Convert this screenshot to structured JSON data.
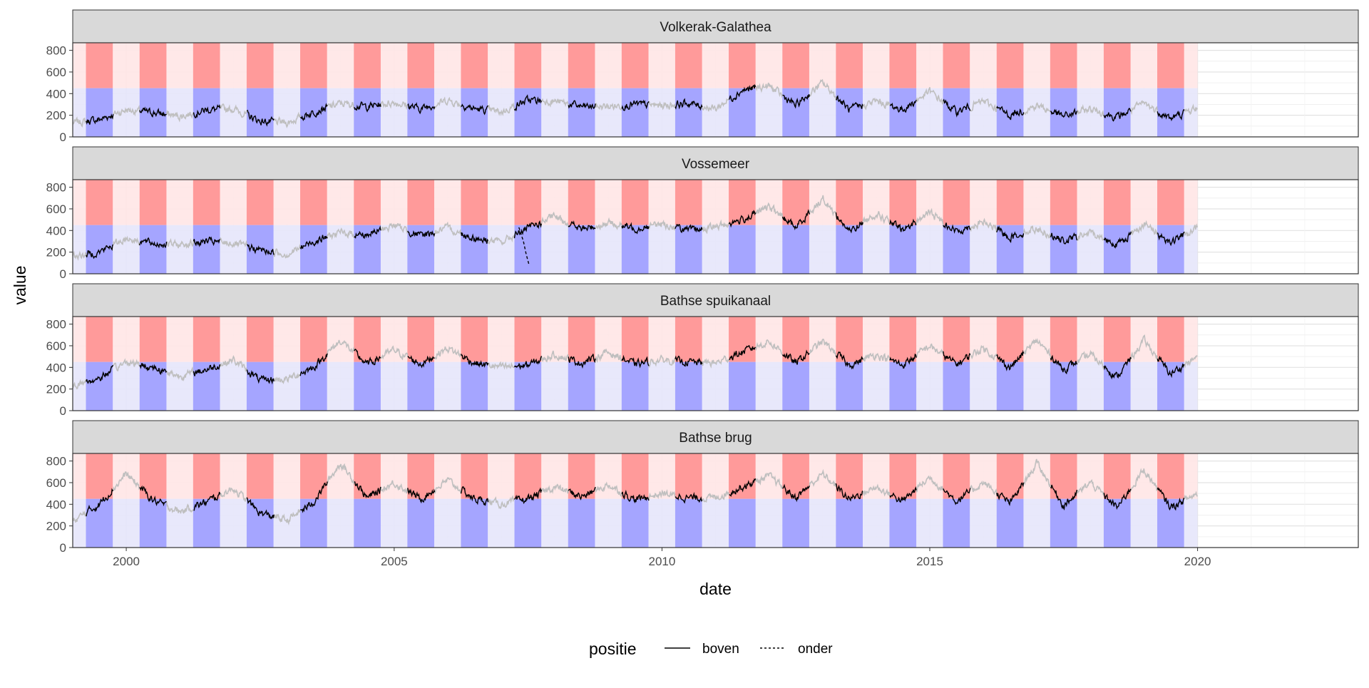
{
  "chart_data": {
    "type": "line",
    "xlabel": "date",
    "ylabel": "value",
    "x_range": [
      "1999-01-01",
      "2023-01-01"
    ],
    "ylim": [
      0,
      870
    ],
    "x_ticks": [
      {
        "label": "2000",
        "date": "2000-01-01"
      },
      {
        "label": "2005",
        "date": "2005-01-01"
      },
      {
        "label": "2010",
        "date": "2010-01-01"
      },
      {
        "label": "2015",
        "date": "2015-01-01"
      },
      {
        "label": "2020",
        "date": "2020-01-01"
      }
    ],
    "y_ticks": [
      0,
      200,
      400,
      600,
      800
    ],
    "threshold": 450,
    "season_start_month": 4,
    "season_end_month": 9,
    "season_years": [
      1999,
      2019
    ],
    "colors": {
      "red_band": "#ff9a9a",
      "red_light": "#ffe6e6",
      "blue_band": "#a5a5ff",
      "blue_light": "#e6e6fb",
      "active": "#000000",
      "inactive": "#bfbfbf",
      "strip": "#d9d9d9"
    },
    "grid": true,
    "legend": {
      "title": "positie",
      "position": "bottom",
      "items": [
        {
          "label": "boven",
          "style": "solid"
        },
        {
          "label": "onder",
          "style": "dashed"
        }
      ]
    },
    "panels": [
      {
        "name": "Volkerak-Galathea",
        "series": [
          {
            "x": "1999-01-01",
            "y": 130
          },
          {
            "x": "1999-07-01",
            "y": 160
          },
          {
            "x": "2000-01-01",
            "y": 250
          },
          {
            "x": "2000-07-01",
            "y": 225
          },
          {
            "x": "2001-01-01",
            "y": 190
          },
          {
            "x": "2001-07-01",
            "y": 250
          },
          {
            "x": "2002-01-01",
            "y": 260
          },
          {
            "x": "2002-07-01",
            "y": 145
          },
          {
            "x": "2003-01-01",
            "y": 130
          },
          {
            "x": "2003-07-01",
            "y": 230
          },
          {
            "x": "2004-01-01",
            "y": 310
          },
          {
            "x": "2004-07-01",
            "y": 280
          },
          {
            "x": "2005-01-01",
            "y": 320
          },
          {
            "x": "2005-07-01",
            "y": 260
          },
          {
            "x": "2006-01-01",
            "y": 340
          },
          {
            "x": "2006-07-01",
            "y": 260
          },
          {
            "x": "2007-01-01",
            "y": 230
          },
          {
            "x": "2007-07-01",
            "y": 340
          },
          {
            "x": "2008-01-01",
            "y": 330
          },
          {
            "x": "2008-07-01",
            "y": 280
          },
          {
            "x": "2009-01-01",
            "y": 280
          },
          {
            "x": "2009-07-01",
            "y": 300
          },
          {
            "x": "2010-01-01",
            "y": 290
          },
          {
            "x": "2010-07-01",
            "y": 310
          },
          {
            "x": "2011-01-01",
            "y": 260
          },
          {
            "x": "2011-07-01",
            "y": 430
          },
          {
            "x": "2012-01-01",
            "y": 470
          },
          {
            "x": "2012-07-01",
            "y": 290
          },
          {
            "x": "2013-01-01",
            "y": 500
          },
          {
            "x": "2013-07-01",
            "y": 250
          },
          {
            "x": "2014-01-01",
            "y": 330
          },
          {
            "x": "2014-07-01",
            "y": 250
          },
          {
            "x": "2015-01-01",
            "y": 420
          },
          {
            "x": "2015-07-01",
            "y": 230
          },
          {
            "x": "2016-01-01",
            "y": 330
          },
          {
            "x": "2016-07-01",
            "y": 200
          },
          {
            "x": "2017-01-01",
            "y": 290
          },
          {
            "x": "2017-07-01",
            "y": 190
          },
          {
            "x": "2018-01-01",
            "y": 260
          },
          {
            "x": "2018-07-01",
            "y": 180
          },
          {
            "x": "2019-01-01",
            "y": 310
          },
          {
            "x": "2019-07-01",
            "y": 170
          },
          {
            "x": "2020-01-01",
            "y": 270
          }
        ]
      },
      {
        "name": "Vossemeer",
        "series": [
          {
            "x": "1999-01-01",
            "y": 160
          },
          {
            "x": "1999-07-01",
            "y": 200
          },
          {
            "x": "2000-01-01",
            "y": 330
          },
          {
            "x": "2000-07-01",
            "y": 280
          },
          {
            "x": "2001-01-01",
            "y": 270
          },
          {
            "x": "2001-07-01",
            "y": 300
          },
          {
            "x": "2002-01-01",
            "y": 280
          },
          {
            "x": "2002-07-01",
            "y": 220
          },
          {
            "x": "2003-01-01",
            "y": 180
          },
          {
            "x": "2003-07-01",
            "y": 300
          },
          {
            "x": "2004-01-01",
            "y": 380
          },
          {
            "x": "2004-07-01",
            "y": 360
          },
          {
            "x": "2005-01-01",
            "y": 450
          },
          {
            "x": "2005-07-01",
            "y": 350
          },
          {
            "x": "2006-01-01",
            "y": 420
          },
          {
            "x": "2006-07-01",
            "y": 330
          },
          {
            "x": "2007-01-01",
            "y": 290
          },
          {
            "x": "2007-07-01",
            "y": 420
          },
          {
            "x": "2008-01-01",
            "y": 530
          },
          {
            "x": "2008-07-01",
            "y": 410
          },
          {
            "x": "2009-01-01",
            "y": 470
          },
          {
            "x": "2009-07-01",
            "y": 420
          },
          {
            "x": "2010-01-01",
            "y": 460
          },
          {
            "x": "2010-07-01",
            "y": 400
          },
          {
            "x": "2011-01-01",
            "y": 430
          },
          {
            "x": "2011-07-01",
            "y": 500
          },
          {
            "x": "2012-01-01",
            "y": 620
          },
          {
            "x": "2012-07-01",
            "y": 430
          },
          {
            "x": "2013-01-01",
            "y": 700
          },
          {
            "x": "2013-07-01",
            "y": 390
          },
          {
            "x": "2014-01-01",
            "y": 560
          },
          {
            "x": "2014-07-01",
            "y": 400
          },
          {
            "x": "2015-01-01",
            "y": 570
          },
          {
            "x": "2015-07-01",
            "y": 390
          },
          {
            "x": "2016-01-01",
            "y": 480
          },
          {
            "x": "2016-07-01",
            "y": 340
          },
          {
            "x": "2017-01-01",
            "y": 420
          },
          {
            "x": "2017-07-01",
            "y": 300
          },
          {
            "x": "2018-01-01",
            "y": 380
          },
          {
            "x": "2018-07-01",
            "y": 270
          },
          {
            "x": "2019-01-01",
            "y": 460
          },
          {
            "x": "2019-07-01",
            "y": 290
          },
          {
            "x": "2020-01-01",
            "y": 420
          }
        ]
      },
      {
        "name": "Bathse spuikanaal",
        "series": [
          {
            "x": "1999-01-01",
            "y": 230
          },
          {
            "x": "1999-07-01",
            "y": 300
          },
          {
            "x": "2000-01-01",
            "y": 450
          },
          {
            "x": "2000-07-01",
            "y": 400
          },
          {
            "x": "2001-01-01",
            "y": 320
          },
          {
            "x": "2001-07-01",
            "y": 380
          },
          {
            "x": "2002-01-01",
            "y": 470
          },
          {
            "x": "2002-07-01",
            "y": 280
          },
          {
            "x": "2003-01-01",
            "y": 290
          },
          {
            "x": "2003-07-01",
            "y": 400
          },
          {
            "x": "2004-01-01",
            "y": 650
          },
          {
            "x": "2004-07-01",
            "y": 430
          },
          {
            "x": "2005-01-01",
            "y": 560
          },
          {
            "x": "2005-07-01",
            "y": 430
          },
          {
            "x": "2006-01-01",
            "y": 580
          },
          {
            "x": "2006-07-01",
            "y": 440
          },
          {
            "x": "2007-01-01",
            "y": 400
          },
          {
            "x": "2007-07-01",
            "y": 420
          },
          {
            "x": "2008-01-01",
            "y": 520
          },
          {
            "x": "2008-07-01",
            "y": 440
          },
          {
            "x": "2009-01-01",
            "y": 540
          },
          {
            "x": "2009-07-01",
            "y": 430
          },
          {
            "x": "2010-01-01",
            "y": 470
          },
          {
            "x": "2010-07-01",
            "y": 450
          },
          {
            "x": "2011-01-01",
            "y": 440
          },
          {
            "x": "2011-07-01",
            "y": 540
          },
          {
            "x": "2012-01-01",
            "y": 640
          },
          {
            "x": "2012-07-01",
            "y": 440
          },
          {
            "x": "2013-01-01",
            "y": 640
          },
          {
            "x": "2013-07-01",
            "y": 420
          },
          {
            "x": "2014-01-01",
            "y": 520
          },
          {
            "x": "2014-07-01",
            "y": 420
          },
          {
            "x": "2015-01-01",
            "y": 600
          },
          {
            "x": "2015-07-01",
            "y": 430
          },
          {
            "x": "2016-01-01",
            "y": 580
          },
          {
            "x": "2016-07-01",
            "y": 400
          },
          {
            "x": "2017-01-01",
            "y": 650
          },
          {
            "x": "2017-07-01",
            "y": 380
          },
          {
            "x": "2018-01-01",
            "y": 520
          },
          {
            "x": "2018-07-01",
            "y": 310
          },
          {
            "x": "2019-01-01",
            "y": 650
          },
          {
            "x": "2019-07-01",
            "y": 340
          },
          {
            "x": "2020-01-01",
            "y": 500
          }
        ]
      },
      {
        "name": "Bathse brug",
        "series": [
          {
            "x": "1999-01-01",
            "y": 240
          },
          {
            "x": "1999-07-01",
            "y": 400
          },
          {
            "x": "2000-01-01",
            "y": 680
          },
          {
            "x": "2000-07-01",
            "y": 440
          },
          {
            "x": "2001-01-01",
            "y": 330
          },
          {
            "x": "2001-07-01",
            "y": 420
          },
          {
            "x": "2002-01-01",
            "y": 550
          },
          {
            "x": "2002-07-01",
            "y": 320
          },
          {
            "x": "2003-01-01",
            "y": 250
          },
          {
            "x": "2003-07-01",
            "y": 420
          },
          {
            "x": "2004-01-01",
            "y": 780
          },
          {
            "x": "2004-07-01",
            "y": 460
          },
          {
            "x": "2005-01-01",
            "y": 600
          },
          {
            "x": "2005-07-01",
            "y": 450
          },
          {
            "x": "2006-01-01",
            "y": 620
          },
          {
            "x": "2006-07-01",
            "y": 450
          },
          {
            "x": "2007-01-01",
            "y": 400
          },
          {
            "x": "2007-07-01",
            "y": 450
          },
          {
            "x": "2008-01-01",
            "y": 560
          },
          {
            "x": "2008-07-01",
            "y": 470
          },
          {
            "x": "2009-01-01",
            "y": 580
          },
          {
            "x": "2009-07-01",
            "y": 440
          },
          {
            "x": "2010-01-01",
            "y": 500
          },
          {
            "x": "2010-07-01",
            "y": 460
          },
          {
            "x": "2011-01-01",
            "y": 460
          },
          {
            "x": "2011-07-01",
            "y": 560
          },
          {
            "x": "2012-01-01",
            "y": 660
          },
          {
            "x": "2012-07-01",
            "y": 460
          },
          {
            "x": "2013-01-01",
            "y": 680
          },
          {
            "x": "2013-07-01",
            "y": 450
          },
          {
            "x": "2014-01-01",
            "y": 560
          },
          {
            "x": "2014-07-01",
            "y": 430
          },
          {
            "x": "2015-01-01",
            "y": 650
          },
          {
            "x": "2015-07-01",
            "y": 430
          },
          {
            "x": "2016-01-01",
            "y": 600
          },
          {
            "x": "2016-07-01",
            "y": 410
          },
          {
            "x": "2017-01-01",
            "y": 780
          },
          {
            "x": "2017-07-01",
            "y": 390
          },
          {
            "x": "2018-01-01",
            "y": 600
          },
          {
            "x": "2018-07-01",
            "y": 370
          },
          {
            "x": "2019-01-01",
            "y": 720
          },
          {
            "x": "2019-07-01",
            "y": 370
          },
          {
            "x": "2020-01-01",
            "y": 500
          }
        ]
      }
    ],
    "dashed_segment": {
      "panel": "Vossemeer",
      "points": [
        {
          "x": "2007-05-01",
          "y": 430
        },
        {
          "x": "2007-06-01",
          "y": 300
        },
        {
          "x": "2007-06-20",
          "y": 180
        },
        {
          "x": "2007-07-10",
          "y": 80
        }
      ]
    }
  }
}
